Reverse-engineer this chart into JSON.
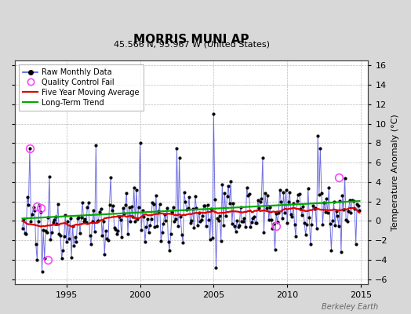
{
  "title": "MORRIS MUNI AP",
  "subtitle": "45.566 N, 95.967 W (United States)",
  "ylabel_right": "Temperature Anomaly (°C)",
  "watermark": "Berkeley Earth",
  "xlim": [
    1991.5,
    2015.5
  ],
  "ylim": [
    -6.5,
    16.5
  ],
  "yticks": [
    -6,
    -4,
    -2,
    0,
    2,
    4,
    6,
    8,
    10,
    12,
    14,
    16
  ],
  "xticks": [
    1995,
    2000,
    2005,
    2010,
    2015
  ],
  "bg_color": "#d8d8d8",
  "plot_bg_color": "#ffffff",
  "grid_color": "#bbbbbb",
  "raw_color": "#5555dd",
  "raw_dot_color": "#000000",
  "ma_color": "#dd0000",
  "trend_color": "#00aa00",
  "qc_color": "#ff44ff",
  "title_fontsize": 11,
  "subtitle_fontsize": 8,
  "tick_fontsize": 8,
  "legend_fontsize": 7,
  "ylabel_fontsize": 8
}
